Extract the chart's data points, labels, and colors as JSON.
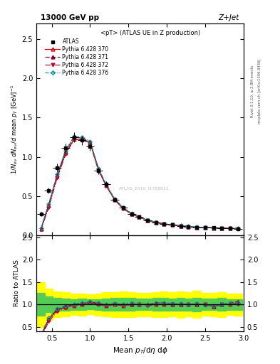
{
  "title_top": "13000 GeV pp",
  "title_right": "Z+Jet",
  "plot_title": "<pT> (ATLAS UE in Z production)",
  "xlabel": "Mean $p_T$/d$\\eta$ d$\\phi$",
  "ylabel_main": "1/N$_{ev}$ dN$_{ev}$/d mean p$_T$ [GeV]$^{-1}$",
  "ylabel_ratio": "Ratio to ATLAS",
  "right_label1": "Rivet 3.1.10, ≥ 2.8M events",
  "right_label2": "mcplots.cern.ch [arXiv:1306.3436]",
  "watermark": "ATLAS_2019_I1768911",
  "xlim": [
    0.3,
    3.0
  ],
  "ylim_main": [
    0.0,
    2.7
  ],
  "ylim_ratio": [
    0.4,
    2.55
  ],
  "atlas_x": [
    0.36,
    0.46,
    0.57,
    0.68,
    0.79,
    0.89,
    1.0,
    1.11,
    1.21,
    1.32,
    1.43,
    1.54,
    1.64,
    1.75,
    1.86,
    1.96,
    2.07,
    2.18,
    2.28,
    2.39,
    2.5,
    2.61,
    2.71,
    2.82,
    2.93
  ],
  "atlas_y": [
    0.27,
    0.57,
    0.86,
    1.11,
    1.25,
    1.21,
    1.13,
    0.82,
    0.65,
    0.45,
    0.35,
    0.27,
    0.23,
    0.19,
    0.16,
    0.14,
    0.13,
    0.12,
    0.11,
    0.1,
    0.1,
    0.095,
    0.09,
    0.085,
    0.082
  ],
  "atlas_yerr": [
    0.03,
    0.04,
    0.05,
    0.06,
    0.06,
    0.06,
    0.05,
    0.04,
    0.035,
    0.025,
    0.02,
    0.015,
    0.012,
    0.01,
    0.009,
    0.008,
    0.007,
    0.007,
    0.006,
    0.006,
    0.005,
    0.005,
    0.005,
    0.004,
    0.004
  ],
  "atlas_xerr": [
    0.055,
    0.055,
    0.055,
    0.055,
    0.055,
    0.055,
    0.055,
    0.055,
    0.055,
    0.055,
    0.055,
    0.055,
    0.055,
    0.055,
    0.055,
    0.055,
    0.055,
    0.055,
    0.055,
    0.055,
    0.055,
    0.055,
    0.055,
    0.055,
    0.055
  ],
  "py370_x": [
    0.36,
    0.46,
    0.57,
    0.68,
    0.79,
    0.89,
    1.0,
    1.11,
    1.21,
    1.32,
    1.43,
    1.54,
    1.64,
    1.75,
    1.86,
    1.96,
    2.07,
    2.18,
    2.28,
    2.39,
    2.5,
    2.61,
    2.71,
    2.82,
    2.93
  ],
  "py370_y": [
    0.08,
    0.38,
    0.75,
    1.05,
    1.22,
    1.22,
    1.18,
    0.83,
    0.63,
    0.45,
    0.34,
    0.27,
    0.23,
    0.19,
    0.16,
    0.14,
    0.13,
    0.12,
    0.11,
    0.1,
    0.1,
    0.09,
    0.09,
    0.085,
    0.085
  ],
  "py371_x": [
    0.36,
    0.46,
    0.57,
    0.68,
    0.79,
    0.89,
    1.0,
    1.11,
    1.21,
    1.32,
    1.43,
    1.54,
    1.64,
    1.75,
    1.86,
    1.96,
    2.07,
    2.18,
    2.28,
    2.39,
    2.5,
    2.61,
    2.71,
    2.82,
    2.93
  ],
  "py371_y": [
    0.08,
    0.38,
    0.77,
    1.07,
    1.25,
    1.24,
    1.19,
    0.84,
    0.64,
    0.46,
    0.35,
    0.27,
    0.23,
    0.19,
    0.165,
    0.145,
    0.13,
    0.12,
    0.11,
    0.1,
    0.1,
    0.09,
    0.09,
    0.088,
    0.087
  ],
  "py372_x": [
    0.36,
    0.46,
    0.57,
    0.68,
    0.79,
    0.89,
    1.0,
    1.11,
    1.21,
    1.32,
    1.43,
    1.54,
    1.64,
    1.75,
    1.86,
    1.96,
    2.07,
    2.18,
    2.28,
    2.39,
    2.5,
    2.61,
    2.71,
    2.82,
    2.93
  ],
  "py372_y": [
    0.07,
    0.35,
    0.73,
    1.03,
    1.22,
    1.22,
    1.17,
    0.82,
    0.63,
    0.45,
    0.34,
    0.27,
    0.23,
    0.185,
    0.16,
    0.14,
    0.13,
    0.12,
    0.11,
    0.1,
    0.1,
    0.09,
    0.09,
    0.085,
    0.082
  ],
  "py376_x": [
    0.36,
    0.46,
    0.57,
    0.68,
    0.79,
    0.89,
    1.0,
    1.11,
    1.21,
    1.32,
    1.43,
    1.54,
    1.64,
    1.75,
    1.86,
    1.96,
    2.07,
    2.18,
    2.28,
    2.39,
    2.5,
    2.61,
    2.71,
    2.82,
    2.93
  ],
  "py376_y": [
    0.09,
    0.4,
    0.78,
    1.08,
    1.26,
    1.25,
    1.2,
    0.85,
    0.65,
    0.46,
    0.35,
    0.28,
    0.23,
    0.19,
    0.165,
    0.145,
    0.133,
    0.122,
    0.111,
    0.102,
    0.099,
    0.092,
    0.09,
    0.087,
    0.085
  ],
  "color_370": "#cc0000",
  "color_371": "#880033",
  "color_372": "#aa1133",
  "color_376": "#009999",
  "yticks_main": [
    0.0,
    0.5,
    1.0,
    1.5,
    2.0,
    2.5
  ],
  "yticks_ratio": [
    0.5,
    1.0,
    1.5,
    2.0,
    2.5
  ],
  "xticks": [
    0.5,
    1.0,
    1.5,
    2.0,
    2.5,
    3.0
  ]
}
